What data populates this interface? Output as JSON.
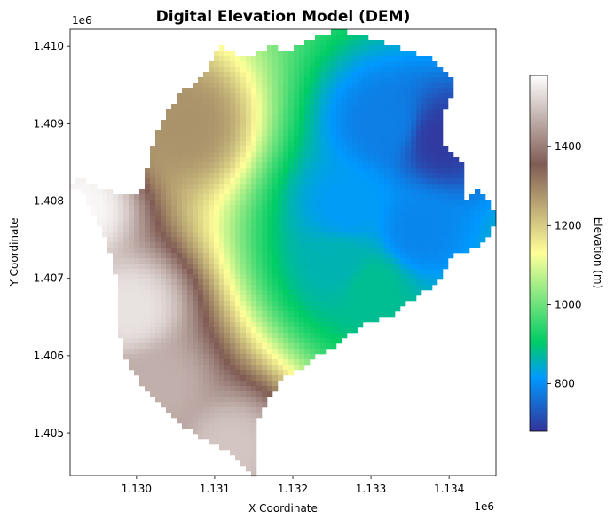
{
  "chart_data": {
    "type": "heatmap",
    "title": "Digital Elevation Model (DEM)",
    "xlabel": "X Coordinate",
    "ylabel": "Y Coordinate",
    "x_offset_text": "1e6",
    "y_offset_text": "1e6",
    "xlim": [
      1.12915,
      1.1346
    ],
    "ylim": [
      1.40445,
      1.41022
    ],
    "x_ticks": [
      {
        "value": 1.13,
        "label": "1.130"
      },
      {
        "value": 1.131,
        "label": "1.131"
      },
      {
        "value": 1.132,
        "label": "1.132"
      },
      {
        "value": 1.133,
        "label": "1.133"
      },
      {
        "value": 1.134,
        "label": "1.134"
      }
    ],
    "y_ticks": [
      {
        "value": 1.405,
        "label": "1.405"
      },
      {
        "value": 1.406,
        "label": "1.406"
      },
      {
        "value": 1.407,
        "label": "1.407"
      },
      {
        "value": 1.408,
        "label": "1.408"
      },
      {
        "value": 1.409,
        "label": "1.409"
      },
      {
        "value": 1.41,
        "label": "1.410"
      }
    ],
    "colorbar": {
      "label": "Elevation (m)",
      "colormap": "terrain",
      "range": [
        680,
        1580
      ],
      "ticks": [
        {
          "value": 800,
          "label": "800"
        },
        {
          "value": 1000,
          "label": "1000"
        },
        {
          "value": 1200,
          "label": "1200"
        },
        {
          "value": 1400,
          "label": "1400"
        }
      ]
    },
    "boundary": [
      [
        1.1315,
        1.40445
      ],
      [
        1.1313,
        1.40465
      ],
      [
        1.1311,
        1.4048
      ],
      [
        1.1308,
        1.40495
      ],
      [
        1.1305,
        1.40515
      ],
      [
        1.1302,
        1.40545
      ],
      [
        1.1299,
        1.40585
      ],
      [
        1.12975,
        1.4064
      ],
      [
        1.12975,
        1.407
      ],
      [
        1.12965,
        1.4074
      ],
      [
        1.12945,
        1.4078
      ],
      [
        1.1293,
        1.4081
      ],
      [
        1.12915,
        1.4082
      ],
      [
        1.12915,
        1.408
      ],
      [
        1.1292,
        1.4083
      ],
      [
        1.12935,
        1.40825
      ],
      [
        1.1296,
        1.40815
      ],
      [
        1.12985,
        1.40805
      ],
      [
        1.13005,
        1.4081
      ],
      [
        1.13015,
        1.4085
      ],
      [
        1.1303,
        1.409
      ],
      [
        1.13055,
        1.4094
      ],
      [
        1.13085,
        1.4096
      ],
      [
        1.13105,
        1.41
      ],
      [
        1.1314,
        1.40985
      ],
      [
        1.13175,
        1.41
      ],
      [
        1.13195,
        1.40995
      ],
      [
        1.13225,
        1.4101
      ],
      [
        1.13255,
        1.41022
      ],
      [
        1.1329,
        1.41015
      ],
      [
        1.13315,
        1.41005
      ],
      [
        1.13345,
        1.40995
      ],
      [
        1.13375,
        1.40985
      ],
      [
        1.134,
        1.40965
      ],
      [
        1.1341,
        1.4094
      ],
      [
        1.13395,
        1.4092
      ],
      [
        1.1339,
        1.4088
      ],
      [
        1.13405,
        1.4086
      ],
      [
        1.1342,
        1.40845
      ],
      [
        1.1342,
        1.408
      ],
      [
        1.1344,
        1.40815
      ],
      [
        1.1345,
        1.408
      ],
      [
        1.1346,
        1.4078
      ],
      [
        1.13455,
        1.4076
      ],
      [
        1.1344,
        1.4074
      ],
      [
        1.13405,
        1.4073
      ],
      [
        1.13395,
        1.4071
      ],
      [
        1.13385,
        1.4069
      ],
      [
        1.1336,
        1.4068
      ],
      [
        1.1334,
        1.4066
      ],
      [
        1.1332,
        1.4065
      ],
      [
        1.1329,
        1.4064
      ],
      [
        1.1327,
        1.40625
      ],
      [
        1.1325,
        1.4061
      ],
      [
        1.13225,
        1.40595
      ],
      [
        1.1321,
        1.4058
      ],
      [
        1.1319,
        1.40575
      ],
      [
        1.1318,
        1.4056
      ],
      [
        1.13165,
        1.4054
      ],
      [
        1.13155,
        1.40515
      ],
      [
        1.13155,
        1.4048
      ],
      [
        1.13155,
        1.4045
      ]
    ],
    "minima": [
      {
        "x": 1.1339,
        "y": 1.4088,
        "elev": 690
      },
      {
        "x": 1.1332,
        "y": 1.409,
        "elev": 780
      },
      {
        "x": 1.1336,
        "y": 1.4076,
        "elev": 790
      },
      {
        "x": 1.1327,
        "y": 1.4079,
        "elev": 820
      },
      {
        "x": 1.1326,
        "y": 1.4072,
        "elev": 860
      },
      {
        "x": 1.133,
        "y": 1.4069,
        "elev": 880
      }
    ],
    "maxima": [
      {
        "x": 1.12925,
        "y": 1.4079,
        "elev": 1570
      },
      {
        "x": 1.1299,
        "y": 1.4066,
        "elev": 1540
      },
      {
        "x": 1.1312,
        "y": 1.4048,
        "elev": 1500
      },
      {
        "x": 1.1303,
        "y": 1.4056,
        "elev": 1470
      },
      {
        "x": 1.1306,
        "y": 1.409,
        "elev": 1280
      }
    ],
    "baseline_elev": 1000
  }
}
